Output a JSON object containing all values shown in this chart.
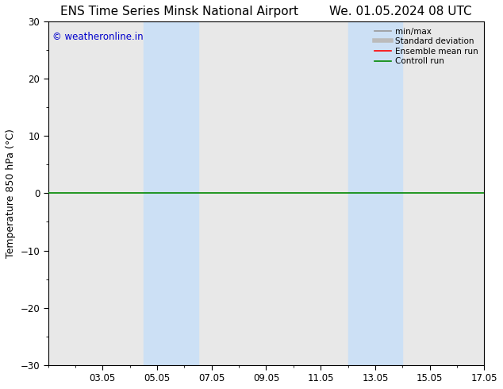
{
  "title_left": "ENS Time Series Minsk National Airport",
  "title_right": "We. 01.05.2024 08 UTC",
  "ylabel": "Temperature 850 hPa (°C)",
  "ylim": [
    -30,
    30
  ],
  "yticks": [
    -30,
    -20,
    -10,
    0,
    10,
    20,
    30
  ],
  "xtick_labels": [
    "03.05",
    "05.05",
    "07.05",
    "09.05",
    "11.05",
    "13.05",
    "15.05",
    "17.05"
  ],
  "xtick_positions": [
    2,
    4,
    6,
    8,
    10,
    12,
    14,
    16
  ],
  "xlim": [
    0,
    16
  ],
  "background_color": "#ffffff",
  "plot_bg_color": "#e8e8e8",
  "shaded_bands": [
    {
      "x_start": 3.5,
      "x_end": 5.5,
      "color": "#cce0f5"
    },
    {
      "x_start": 11.0,
      "x_end": 13.0,
      "color": "#cce0f5"
    }
  ],
  "zero_line_color": "#008800",
  "zero_line_lw": 1.2,
  "legend_entries": [
    {
      "label": "min/max",
      "color": "#999999",
      "lw": 1.2
    },
    {
      "label": "Standard deviation",
      "color": "#bbbbbb",
      "lw": 4.0
    },
    {
      "label": "Ensemble mean run",
      "color": "#ff0000",
      "lw": 1.2
    },
    {
      "label": "Controll run",
      "color": "#008800",
      "lw": 1.2
    }
  ],
  "watermark": "© weatheronline.in",
  "watermark_color": "#0000cc",
  "watermark_fontsize": 8.5,
  "title_fontsize": 11,
  "axis_label_fontsize": 9,
  "tick_fontsize": 8.5
}
